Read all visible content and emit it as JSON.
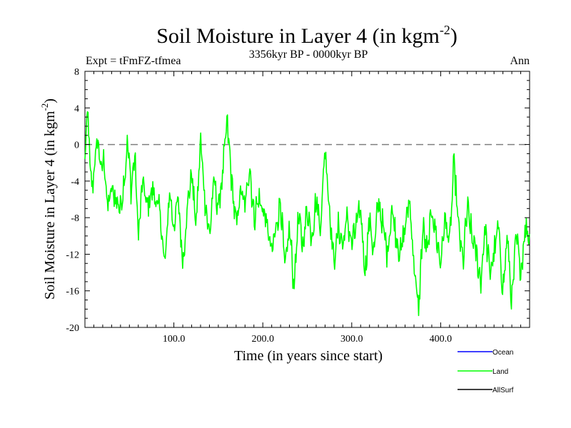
{
  "chart_data": {
    "type": "line",
    "title": "Soil Moisture in Layer 4 (in kgm",
    "title_sup": "-2",
    "title_close": ")",
    "subtitle": "3356kyr BP - 0000kyr BP",
    "left_label": "Expt = tFmFZ-tfmea",
    "right_label": "Ann",
    "xlabel": "Time (in years since start)",
    "ylabel": "Soil Moisture in Layer 4 (in kgm",
    "ylabel_sup": "-2",
    "ylabel_close": ")",
    "xlim": [
      0,
      500
    ],
    "ylim": [
      -20,
      8
    ],
    "x_ticks": [
      100,
      200,
      300,
      400
    ],
    "x_tick_labels": [
      "100.0",
      "200.0",
      "300.0",
      "400.0"
    ],
    "y_ticks": [
      8,
      4,
      0,
      -4,
      -8,
      -12,
      -16,
      -20
    ],
    "y_tick_labels": [
      "8",
      "4",
      "0",
      "-4",
      "-8",
      "-12",
      "-16",
      "-20"
    ],
    "reference_line": 0,
    "legend_position": "bottom-right",
    "colors": {
      "Ocean": "#0000ff",
      "Land": "#00ff00",
      "AllSurf": "#000000",
      "zero_line": "#808080"
    },
    "legend": [
      "Ocean",
      "Land",
      "AllSurf"
    ],
    "series": [
      {
        "name": "Land",
        "color": "#00ff00",
        "step": 5,
        "x_start": 0,
        "keypoints": [
          [
            0,
            -2
          ],
          [
            3,
            4
          ],
          [
            6,
            -3
          ],
          [
            8,
            -5
          ],
          [
            12,
            -1
          ],
          [
            15,
            0.5
          ],
          [
            18,
            -3
          ],
          [
            22,
            -1.5
          ],
          [
            25,
            -7
          ],
          [
            30,
            -5
          ],
          [
            35,
            -6
          ],
          [
            40,
            -7
          ],
          [
            45,
            -3
          ],
          [
            48,
            0.3
          ],
          [
            52,
            -5
          ],
          [
            56,
            -1
          ],
          [
            60,
            -10
          ],
          [
            65,
            -4
          ],
          [
            70,
            -7
          ],
          [
            75,
            -5
          ],
          [
            80,
            -6
          ],
          [
            85,
            -8
          ],
          [
            90,
            -13.5
          ],
          [
            95,
            -5
          ],
          [
            100,
            -9
          ],
          [
            105,
            -6
          ],
          [
            110,
            -13
          ],
          [
            115,
            -7
          ],
          [
            120,
            -3
          ],
          [
            125,
            -9
          ],
          [
            130,
            0.5
          ],
          [
            135,
            -6
          ],
          [
            140,
            -10
          ],
          [
            145,
            -4
          ],
          [
            150,
            -7
          ],
          [
            155,
            -3
          ],
          [
            160,
            2.5
          ],
          [
            165,
            -4
          ],
          [
            170,
            -9
          ],
          [
            175,
            -5
          ],
          [
            180,
            -7
          ],
          [
            185,
            -2
          ],
          [
            190,
            -8
          ],
          [
            195,
            -6
          ],
          [
            200,
            -7
          ],
          [
            205,
            -9
          ],
          [
            210,
            -12
          ],
          [
            215,
            -9
          ],
          [
            220,
            -6
          ],
          [
            225,
            -14
          ],
          [
            230,
            -9
          ],
          [
            235,
            -15.5
          ],
          [
            240,
            -8
          ],
          [
            245,
            -11
          ],
          [
            250,
            -7
          ],
          [
            255,
            -10
          ],
          [
            260,
            -6
          ],
          [
            265,
            -9
          ],
          [
            270,
            0
          ],
          [
            275,
            -7
          ],
          [
            280,
            -13
          ],
          [
            285,
            -9
          ],
          [
            290,
            -11
          ],
          [
            295,
            -8
          ],
          [
            300,
            -11
          ],
          [
            305,
            -9
          ],
          [
            310,
            -7
          ],
          [
            315,
            -14
          ],
          [
            320,
            -8
          ],
          [
            325,
            -12
          ],
          [
            330,
            -6
          ],
          [
            335,
            -9
          ],
          [
            340,
            -12
          ],
          [
            345,
            -7
          ],
          [
            350,
            -10
          ],
          [
            355,
            -12
          ],
          [
            360,
            -9
          ],
          [
            365,
            -6
          ],
          [
            370,
            -13
          ],
          [
            375,
            -18.5
          ],
          [
            380,
            -9
          ],
          [
            385,
            -12
          ],
          [
            390,
            -7
          ],
          [
            395,
            -10
          ],
          [
            400,
            -13
          ],
          [
            405,
            -8
          ],
          [
            410,
            -11
          ],
          [
            415,
            -2
          ],
          [
            420,
            -9
          ],
          [
            425,
            -13
          ],
          [
            430,
            -7
          ],
          [
            435,
            -10
          ],
          [
            440,
            -12
          ],
          [
            445,
            -15
          ],
          [
            450,
            -9
          ],
          [
            455,
            -14
          ],
          [
            460,
            -12
          ],
          [
            465,
            -9
          ],
          [
            470,
            -16
          ],
          [
            475,
            -10
          ],
          [
            480,
            -17.5
          ],
          [
            485,
            -10
          ],
          [
            490,
            -14
          ],
          [
            495,
            -9
          ],
          [
            500,
            -10
          ]
        ]
      }
    ]
  }
}
